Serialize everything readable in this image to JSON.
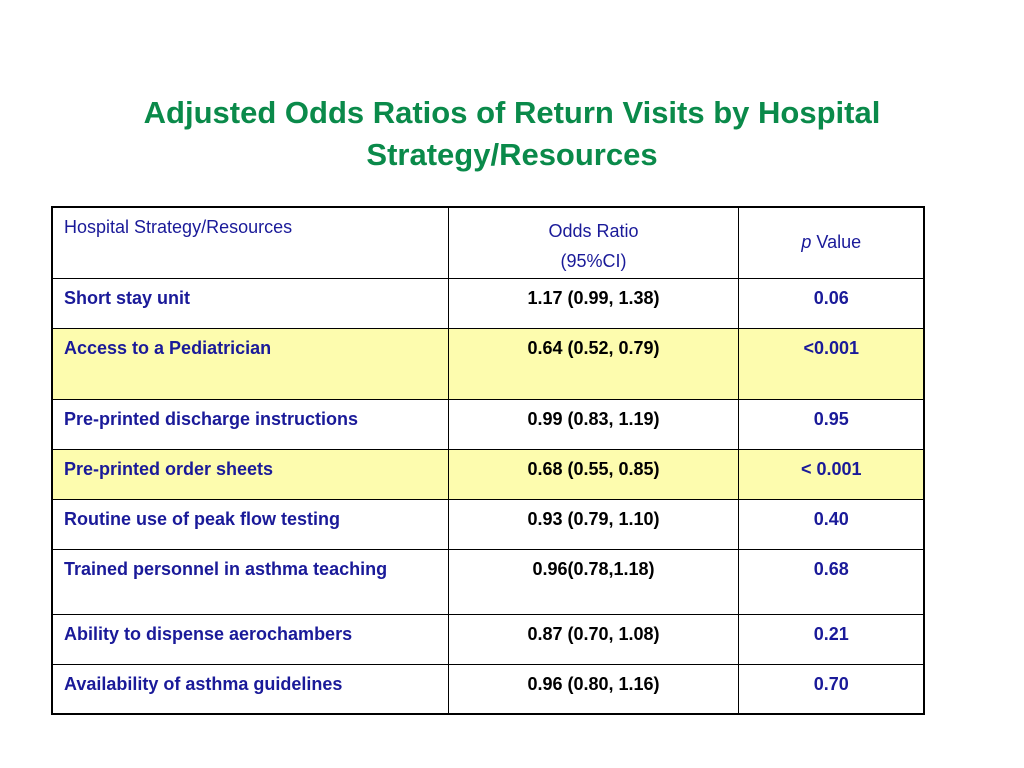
{
  "title": {
    "line1": "Adjusted Odds Ratios of Return Visits by Hospital",
    "line2": "Strategy/Resources"
  },
  "table": {
    "headers": {
      "col1": "Hospital Strategy/Resources",
      "col2_line1": "Odds Ratio",
      "col2_line2": "(95%CI)",
      "col3_p": "p",
      "col3_rest": " Value"
    },
    "rows": [
      {
        "strategy": "Short stay unit",
        "odds_ratio": "1.17 (0.99, 1.38)",
        "p_value": "0.06"
      },
      {
        "strategy": "Access to a Pediatrician",
        "odds_ratio": "0.64 (0.52, 0.79)",
        "p_value": "<0.001"
      },
      {
        "strategy": "Pre-printed discharge instructions",
        "odds_ratio": "0.99 (0.83, 1.19)",
        "p_value": "0.95"
      },
      {
        "strategy": "Pre-printed order sheets",
        "odds_ratio": "0.68 (0.55, 0.85)",
        "p_value": "< 0.001"
      },
      {
        "strategy": "Routine use of peak flow testing",
        "odds_ratio": "0.93 (0.79, 1.10)",
        "p_value": "0.40"
      },
      {
        "strategy": "Trained personnel in asthma teaching",
        "odds_ratio": "0.96(0.78,1.18)",
        "p_value": "0.68"
      },
      {
        "strategy": "Ability to dispense aerochambers",
        "odds_ratio": "0.87 (0.70, 1.08)",
        "p_value": "0.21"
      },
      {
        "strategy": "Availability of asthma guidelines",
        "odds_ratio": "0.96 (0.80, 1.16)",
        "p_value": "0.70"
      }
    ],
    "highlight_color": "#fdfcae"
  }
}
